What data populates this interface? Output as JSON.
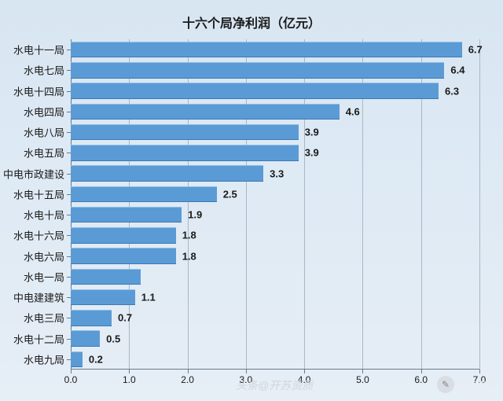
{
  "chart": {
    "type": "bar-horizontal",
    "title": "十六个局净利润（亿元）",
    "title_fontsize": 16,
    "title_color": "#1a1a1a",
    "background": "linear-gradient(to bottom, #d8e6f2 0%, #e6eef6 100%)",
    "plot_bg": "transparent",
    "grid_color": "#a8b8c8",
    "axis_color": "#6a7a8a",
    "bar_color": "#5b9bd5",
    "bar_border": "#3a7ab5",
    "value_label_color": "#1a1a1a",
    "value_label_fontsize": 13,
    "category_label_color": "#1a1a1a",
    "category_label_fontsize": 13,
    "tick_label_color": "#1a1a1a",
    "tick_label_fontsize": 12,
    "xlim": [
      0.0,
      7.0
    ],
    "xtick_step": 1.0,
    "xtick_format": "fixed1",
    "categories": [
      "水电十一局",
      "水电七局",
      "水电十四局",
      "水电四局",
      "水电八局",
      "水电五局",
      "中电市政建设",
      "水电十五局",
      "水电十局",
      "水电十六局",
      "水电六局",
      "水电一局",
      "中电建建筑",
      "水电三局",
      "水电十二局",
      "水电九局"
    ],
    "values": [
      6.7,
      6.4,
      6.3,
      4.6,
      3.9,
      3.9,
      3.3,
      2.5,
      1.9,
      1.8,
      1.8,
      null,
      1.1,
      0.7,
      0.5,
      0.2
    ],
    "value_labels": [
      "6.7",
      "6.4",
      "6.3",
      "4.6",
      "3.9",
      "3.9",
      "3.3",
      "2.5",
      "1.9",
      "1.8",
      "1.8",
      "",
      "1.1",
      "0.7",
      "0.5",
      "0.2"
    ],
    "bar_height_ratio": 0.78
  },
  "watermark": {
    "left_text": "头条@开苏资质",
    "left_color": "#d0d6dc",
    "left_fontsize": 14,
    "right_text": "建筑资质",
    "right_color": "#e8edf2",
    "right_fontsize": 12,
    "icon_bg": "#d8dee4",
    "icon_glyph": "✎"
  }
}
